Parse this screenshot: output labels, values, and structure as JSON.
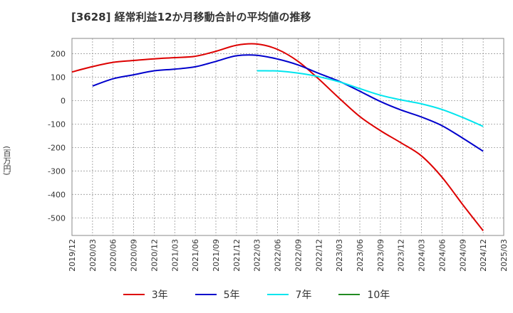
{
  "chart_data": {
    "type": "line",
    "title": "[3628]  経常利益12か月移動合計の平均値の推移",
    "ylabel": "(百万円)",
    "xlabel": "",
    "x": [
      "2019/12",
      "2020/03",
      "2020/06",
      "2020/09",
      "2020/12",
      "2021/03",
      "2021/06",
      "2021/09",
      "2021/12",
      "2022/03",
      "2022/06",
      "2022/09",
      "2022/12",
      "2023/03",
      "2023/06",
      "2023/09",
      "2023/12",
      "2024/03",
      "2024/06",
      "2024/09",
      "2024/12",
      "2025/03"
    ],
    "yticks": [
      200,
      100,
      0,
      -100,
      -200,
      -300,
      -400,
      -500
    ],
    "ylim": [
      -575,
      265
    ],
    "grid": true,
    "legend_position": "bottom",
    "series": [
      {
        "name": "3年",
        "color": "#dd0000",
        "values": [
          122,
          145,
          163,
          171,
          178,
          183,
          189,
          210,
          236,
          241,
          218,
          167,
          92,
          10,
          -68,
          -128,
          -180,
          -236,
          -327,
          -443,
          -555,
          null
        ]
      },
      {
        "name": "5年",
        "color": "#0000cc",
        "values": [
          null,
          62,
          93,
          110,
          127,
          134,
          144,
          167,
          191,
          193,
          177,
          152,
          116,
          82,
          40,
          -4,
          -40,
          -70,
          -107,
          -160,
          -216,
          null
        ]
      },
      {
        "name": "7年",
        "color": "#00e5ee",
        "values": [
          null,
          null,
          null,
          null,
          null,
          null,
          null,
          null,
          null,
          127,
          126,
          117,
          102,
          80,
          51,
          23,
          3,
          -14,
          -38,
          -72,
          -110,
          null
        ]
      },
      {
        "name": "10年",
        "color": "#228b22",
        "values": [
          null,
          null,
          null,
          null,
          null,
          null,
          null,
          null,
          null,
          null,
          null,
          null,
          null,
          null,
          null,
          null,
          null,
          null,
          null,
          null,
          null,
          null
        ]
      }
    ]
  }
}
